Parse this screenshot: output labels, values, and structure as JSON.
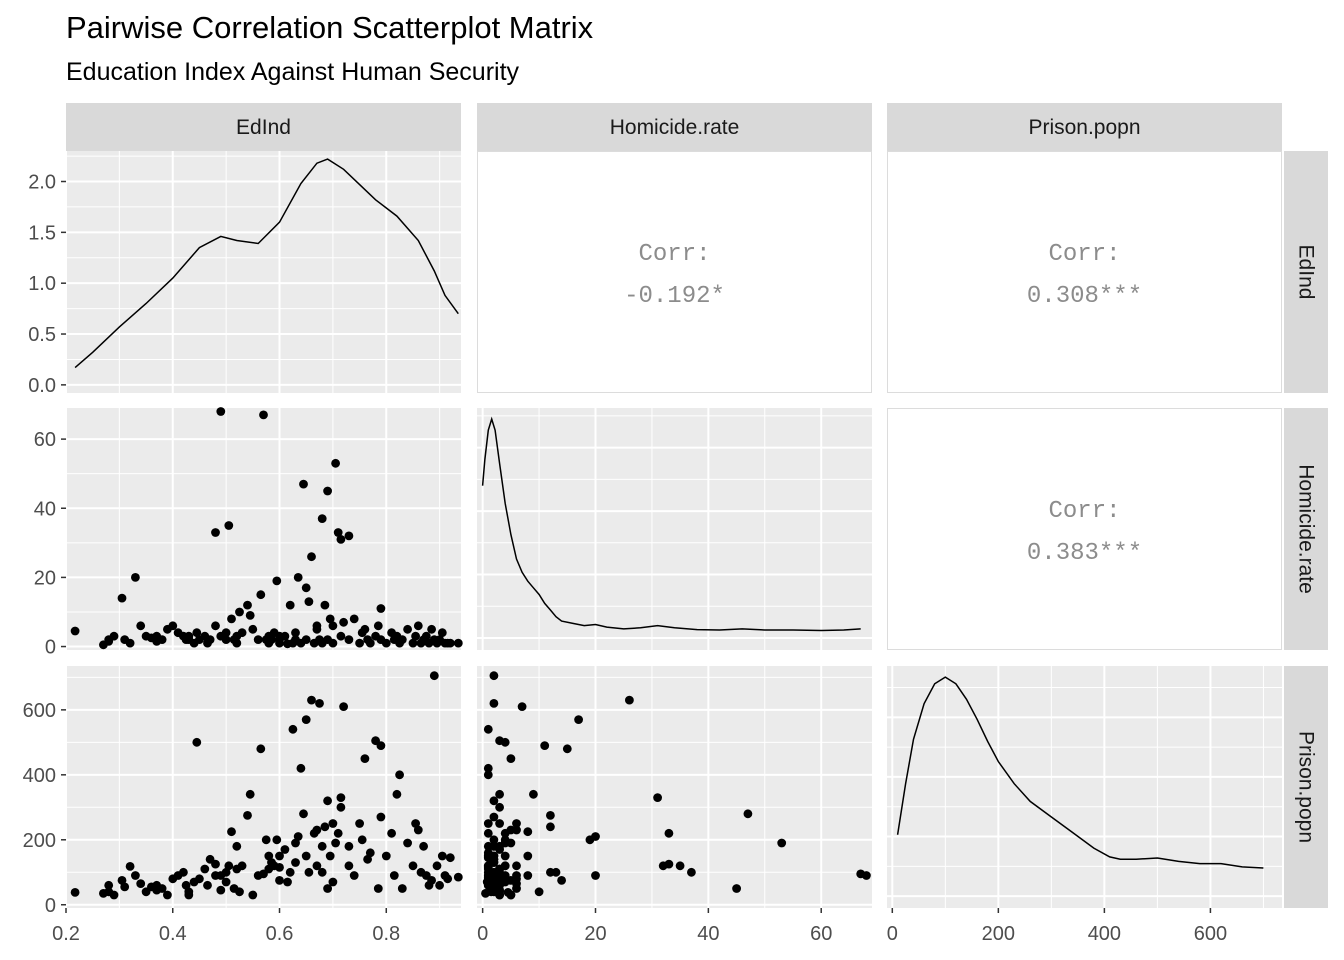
{
  "header": {
    "title": "Pairwise Correlation Scatterplot Matrix",
    "subtitle": "Education Index Against Human Security"
  },
  "chart_data": {
    "type": "scatter",
    "variables": [
      "EdInd",
      "Homicide.rate",
      "Prison.popn"
    ],
    "colors": {
      "panel_bg": "#ebebeb",
      "strip_bg": "#d9d9d9",
      "grid": "#ffffff",
      "points": "#000000",
      "corr_text": "#8c8c8c"
    },
    "axes": {
      "EdInd": {
        "range": [
          0.2,
          0.94
        ],
        "ticks": [
          0.2,
          0.4,
          0.6,
          0.8
        ],
        "tick_labels": [
          "0.2",
          "0.4",
          "0.6",
          "0.8"
        ]
      },
      "Homicide.rate": {
        "range": [
          -1,
          69
        ],
        "ticks": [
          0,
          20,
          40,
          60
        ],
        "tick_labels": [
          "0",
          "20",
          "40",
          "60"
        ]
      },
      "Prison.popn": {
        "range": [
          -10,
          735
        ],
        "ticks": [
          0,
          200,
          400,
          600
        ],
        "tick_labels": [
          "0",
          "200",
          "400",
          "600"
        ]
      },
      "density_EdInd": {
        "range": [
          -0.08,
          2.3
        ],
        "ticks": [
          0.0,
          0.5,
          1.0,
          1.5,
          2.0
        ],
        "tick_labels": [
          "0.0",
          "0.5",
          "1.0",
          "1.5",
          "2.0"
        ]
      }
    },
    "correlations": [
      {
        "row": "EdInd",
        "col": "Homicide.rate",
        "label": "Corr:",
        "value": "-0.192*"
      },
      {
        "row": "EdInd",
        "col": "Prison.popn",
        "label": "Corr:",
        "value": "0.308***"
      },
      {
        "row": "Homicide.rate",
        "col": "Prison.popn",
        "label": "Corr:",
        "value": "0.383***"
      }
    ],
    "density": {
      "EdInd": [
        [
          0.217,
          0.17
        ],
        [
          0.25,
          0.32
        ],
        [
          0.3,
          0.57
        ],
        [
          0.35,
          0.8
        ],
        [
          0.4,
          1.05
        ],
        [
          0.45,
          1.35
        ],
        [
          0.49,
          1.46
        ],
        [
          0.52,
          1.42
        ],
        [
          0.56,
          1.39
        ],
        [
          0.6,
          1.6
        ],
        [
          0.64,
          1.98
        ],
        [
          0.67,
          2.18
        ],
        [
          0.69,
          2.22
        ],
        [
          0.72,
          2.12
        ],
        [
          0.75,
          1.97
        ],
        [
          0.78,
          1.82
        ],
        [
          0.82,
          1.66
        ],
        [
          0.86,
          1.42
        ],
        [
          0.89,
          1.12
        ],
        [
          0.91,
          0.88
        ],
        [
          0.935,
          0.7
        ]
      ],
      "Homicide.rate": [
        [
          0,
          0.7
        ],
        [
          0.4,
          0.82
        ],
        [
          1,
          0.95
        ],
        [
          1.6,
          1
        ],
        [
          2.2,
          0.95
        ],
        [
          3,
          0.8
        ],
        [
          4,
          0.62
        ],
        [
          5,
          0.48
        ],
        [
          6,
          0.37
        ],
        [
          7,
          0.31
        ],
        [
          8,
          0.27
        ],
        [
          9,
          0.24
        ],
        [
          10,
          0.21
        ],
        [
          11,
          0.17
        ],
        [
          12,
          0.14
        ],
        [
          13,
          0.11
        ],
        [
          14,
          0.09
        ],
        [
          16,
          0.08
        ],
        [
          18,
          0.07
        ],
        [
          20,
          0.075
        ],
        [
          22,
          0.063
        ],
        [
          25,
          0.055
        ],
        [
          28,
          0.06
        ],
        [
          31,
          0.07
        ],
        [
          34,
          0.06
        ],
        [
          38,
          0.052
        ],
        [
          42,
          0.05
        ],
        [
          46,
          0.055
        ],
        [
          50,
          0.05
        ],
        [
          55,
          0.05
        ],
        [
          60,
          0.048
        ],
        [
          64,
          0.05
        ],
        [
          67,
          0.055
        ]
      ],
      "Prison.popn": [
        [
          10,
          0.29
        ],
        [
          25,
          0.52
        ],
        [
          40,
          0.72
        ],
        [
          60,
          0.88
        ],
        [
          80,
          0.97
        ],
        [
          100,
          1
        ],
        [
          120,
          0.97
        ],
        [
          140,
          0.9
        ],
        [
          160,
          0.81
        ],
        [
          180,
          0.71
        ],
        [
          200,
          0.62
        ],
        [
          230,
          0.52
        ],
        [
          260,
          0.44
        ],
        [
          300,
          0.37
        ],
        [
          340,
          0.3
        ],
        [
          380,
          0.23
        ],
        [
          410,
          0.19
        ],
        [
          430,
          0.18
        ],
        [
          460,
          0.18
        ],
        [
          500,
          0.185
        ],
        [
          540,
          0.17
        ],
        [
          580,
          0.16
        ],
        [
          620,
          0.16
        ],
        [
          660,
          0.145
        ],
        [
          700,
          0.14
        ]
      ]
    },
    "points": [
      [
        0.217,
        4.5,
        38
      ],
      [
        0.27,
        0.5,
        35
      ],
      [
        0.28,
        1.5,
        40
      ],
      [
        0.28,
        2,
        60
      ],
      [
        0.29,
        3,
        30
      ],
      [
        0.305,
        14,
        75
      ],
      [
        0.31,
        2,
        55
      ],
      [
        0.33,
        20,
        90
      ],
      [
        0.32,
        1,
        118
      ],
      [
        0.34,
        6,
        65
      ],
      [
        0.35,
        3,
        40
      ],
      [
        0.36,
        2.5,
        55
      ],
      [
        0.37,
        3,
        60
      ],
      [
        0.37,
        1.5,
        45
      ],
      [
        0.38,
        2,
        50
      ],
      [
        0.39,
        5,
        30
      ],
      [
        0.4,
        6,
        80
      ],
      [
        0.41,
        4,
        90
      ],
      [
        0.42,
        3,
        100
      ],
      [
        0.425,
        2,
        60
      ],
      [
        0.43,
        3,
        30
      ],
      [
        0.44,
        1,
        70
      ],
      [
        0.445,
        4,
        500
      ],
      [
        0.45,
        2,
        80
      ],
      [
        0.46,
        3,
        110
      ],
      [
        0.465,
        1,
        60
      ],
      [
        0.47,
        2,
        140
      ],
      [
        0.48,
        33,
        125
      ],
      [
        0.49,
        68,
        90
      ],
      [
        0.49,
        3,
        45
      ],
      [
        0.5,
        2,
        100
      ],
      [
        0.5,
        4,
        70
      ],
      [
        0.505,
        35,
        120
      ],
      [
        0.51,
        8,
        225
      ],
      [
        0.515,
        2,
        50
      ],
      [
        0.52,
        1,
        110
      ],
      [
        0.525,
        10,
        40
      ],
      [
        0.53,
        4,
        120
      ],
      [
        0.54,
        12,
        275
      ],
      [
        0.545,
        9,
        340
      ],
      [
        0.55,
        5,
        30
      ],
      [
        0.56,
        2,
        90
      ],
      [
        0.565,
        15,
        480
      ],
      [
        0.57,
        67,
        95
      ],
      [
        0.575,
        2,
        200
      ],
      [
        0.58,
        3,
        110
      ],
      [
        0.585,
        2,
        130
      ],
      [
        0.59,
        4,
        120
      ],
      [
        0.595,
        19,
        200
      ],
      [
        0.6,
        2,
        150
      ],
      [
        0.6,
        1,
        115
      ],
      [
        0.61,
        3,
        170
      ],
      [
        0.615,
        0.8,
        70
      ],
      [
        0.62,
        12,
        100
      ],
      [
        0.625,
        1,
        540
      ],
      [
        0.63,
        4,
        190
      ],
      [
        0.63,
        2,
        130
      ],
      [
        0.635,
        20,
        210
      ],
      [
        0.64,
        1,
        420
      ],
      [
        0.645,
        47,
        280
      ],
      [
        0.65,
        2,
        150
      ],
      [
        0.65,
        17,
        570
      ],
      [
        0.655,
        13,
        100
      ],
      [
        0.66,
        26,
        630
      ],
      [
        0.665,
        1,
        220
      ],
      [
        0.67,
        6,
        120
      ],
      [
        0.67,
        5,
        230
      ],
      [
        0.675,
        2,
        620
      ],
      [
        0.68,
        37,
        100
      ],
      [
        0.68,
        1,
        180
      ],
      [
        0.685,
        12,
        240
      ],
      [
        0.69,
        45,
        50
      ],
      [
        0.69,
        2,
        320
      ],
      [
        0.695,
        8,
        150
      ],
      [
        0.7,
        1,
        70
      ],
      [
        0.7,
        6,
        250
      ],
      [
        0.705,
        53,
        190
      ],
      [
        0.71,
        33,
        220
      ],
      [
        0.715,
        3,
        300
      ],
      [
        0.715,
        31,
        330
      ],
      [
        0.72,
        7,
        610
      ],
      [
        0.73,
        32,
        120
      ],
      [
        0.73,
        2,
        180
      ],
      [
        0.74,
        8,
        90
      ],
      [
        0.75,
        1,
        250
      ],
      [
        0.755,
        4,
        200
      ],
      [
        0.76,
        5,
        450
      ],
      [
        0.765,
        2,
        140
      ],
      [
        0.77,
        1,
        160
      ],
      [
        0.78,
        3,
        505
      ],
      [
        0.785,
        6,
        50
      ],
      [
        0.79,
        2,
        270
      ],
      [
        0.79,
        11,
        490
      ],
      [
        0.8,
        1,
        150
      ],
      [
        0.81,
        4,
        220
      ],
      [
        0.815,
        2,
        90
      ],
      [
        0.82,
        3,
        340
      ],
      [
        0.825,
        1,
        400
      ],
      [
        0.83,
        2,
        50
      ],
      [
        0.84,
        5,
        190
      ],
      [
        0.85,
        1,
        120
      ],
      [
        0.855,
        3,
        250
      ],
      [
        0.86,
        6,
        230
      ],
      [
        0.865,
        1,
        100
      ],
      [
        0.87,
        2,
        180
      ],
      [
        0.875,
        3,
        90
      ],
      [
        0.88,
        1,
        60
      ],
      [
        0.885,
        5,
        75
      ],
      [
        0.89,
        2,
        705
      ],
      [
        0.895,
        1,
        120
      ],
      [
        0.9,
        2,
        60
      ],
      [
        0.905,
        4,
        150
      ],
      [
        0.91,
        1,
        90
      ],
      [
        0.915,
        1,
        80
      ],
      [
        0.92,
        1,
        145
      ],
      [
        0.935,
        1,
        85
      ],
      [
        0.6,
        3,
        75
      ],
      [
        0.58,
        1,
        150
      ],
      [
        0.52,
        3,
        180
      ],
      [
        0.48,
        6,
        90
      ],
      [
        0.43,
        2,
        40
      ]
    ]
  }
}
